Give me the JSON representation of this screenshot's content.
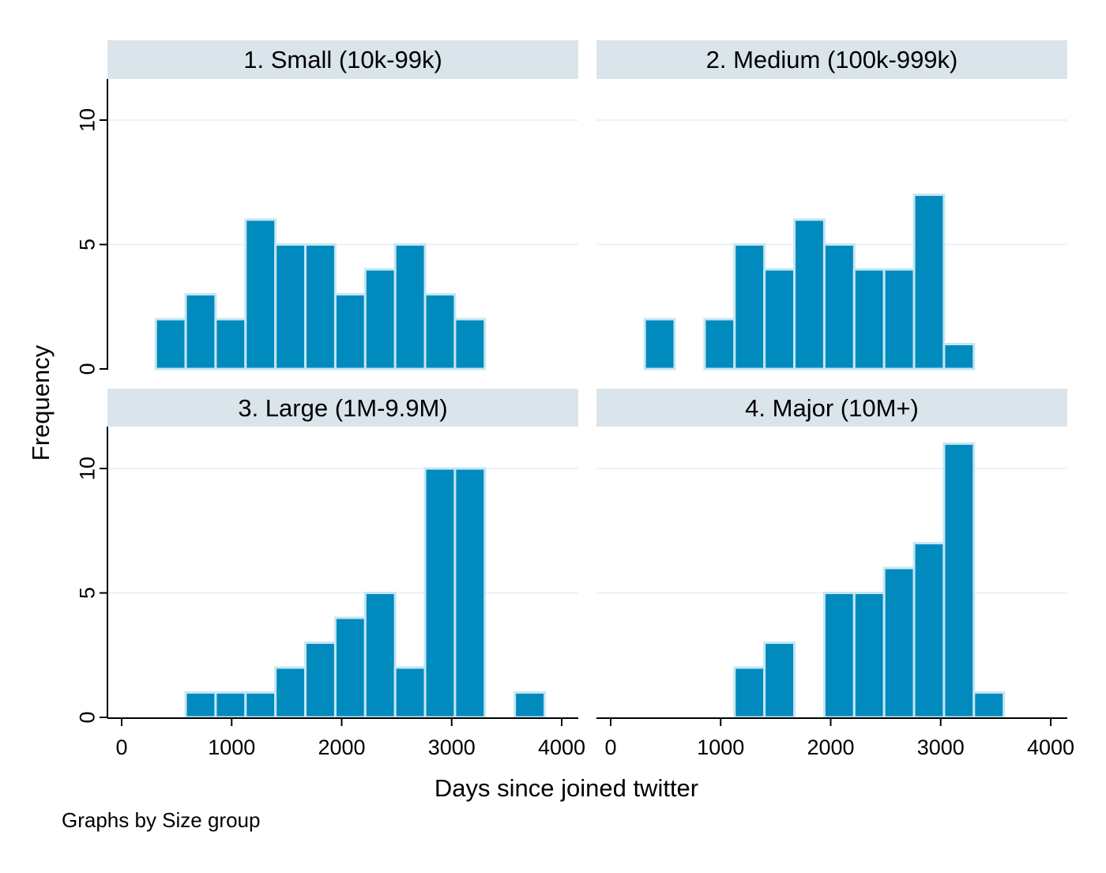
{
  "chart_data": {
    "type": "bar",
    "subtype": "histogram",
    "layout": "2x2 facets",
    "xlabel": "Days since joined twitter",
    "ylabel": "Frequency",
    "note": "Graphs by Size group",
    "xlim": [
      0,
      4000
    ],
    "ylim": [
      0,
      11
    ],
    "xticks": [
      0,
      1000,
      2000,
      3000,
      4000
    ],
    "yticks": [
      0,
      5,
      10
    ],
    "grid": true,
    "bin_width": 272,
    "colors": {
      "bar_fill": "#008abd",
      "bar_edge": "#c5e6f2",
      "strip": "#dae4eb",
      "grid": "#ebf2f5",
      "axis": "#000000"
    },
    "panels": [
      {
        "title": "1. Small (10k-99k)",
        "bins": [
          {
            "x0": 310,
            "x1": 582,
            "count": 2
          },
          {
            "x0": 582,
            "x1": 854,
            "count": 3
          },
          {
            "x0": 854,
            "x1": 1126,
            "count": 2
          },
          {
            "x0": 1126,
            "x1": 1398,
            "count": 6
          },
          {
            "x0": 1398,
            "x1": 1670,
            "count": 5
          },
          {
            "x0": 1670,
            "x1": 1942,
            "count": 5
          },
          {
            "x0": 1942,
            "x1": 2214,
            "count": 3
          },
          {
            "x0": 2214,
            "x1": 2486,
            "count": 4
          },
          {
            "x0": 2486,
            "x1": 2758,
            "count": 5
          },
          {
            "x0": 2758,
            "x1": 3030,
            "count": 3
          },
          {
            "x0": 3030,
            "x1": 3302,
            "count": 2
          }
        ]
      },
      {
        "title": "2. Medium (100k-999k)",
        "bins": [
          {
            "x0": 310,
            "x1": 582,
            "count": 2
          },
          {
            "x0": 582,
            "x1": 854,
            "count": 0
          },
          {
            "x0": 854,
            "x1": 1126,
            "count": 2
          },
          {
            "x0": 1126,
            "x1": 1398,
            "count": 5
          },
          {
            "x0": 1398,
            "x1": 1670,
            "count": 4
          },
          {
            "x0": 1670,
            "x1": 1942,
            "count": 6
          },
          {
            "x0": 1942,
            "x1": 2214,
            "count": 5
          },
          {
            "x0": 2214,
            "x1": 2486,
            "count": 4
          },
          {
            "x0": 2486,
            "x1": 2758,
            "count": 4
          },
          {
            "x0": 2758,
            "x1": 3030,
            "count": 7
          },
          {
            "x0": 3030,
            "x1": 3302,
            "count": 1
          }
        ]
      },
      {
        "title": "3. Large (1M-9.9M)",
        "bins": [
          {
            "x0": 582,
            "x1": 854,
            "count": 1
          },
          {
            "x0": 854,
            "x1": 1126,
            "count": 1
          },
          {
            "x0": 1126,
            "x1": 1398,
            "count": 1
          },
          {
            "x0": 1398,
            "x1": 1670,
            "count": 2
          },
          {
            "x0": 1670,
            "x1": 1942,
            "count": 3
          },
          {
            "x0": 1942,
            "x1": 2214,
            "count": 4
          },
          {
            "x0": 2214,
            "x1": 2486,
            "count": 5
          },
          {
            "x0": 2486,
            "x1": 2758,
            "count": 2
          },
          {
            "x0": 2758,
            "x1": 3030,
            "count": 10
          },
          {
            "x0": 3030,
            "x1": 3302,
            "count": 10
          },
          {
            "x0": 3302,
            "x1": 3574,
            "count": 0
          },
          {
            "x0": 3574,
            "x1": 3846,
            "count": 1
          }
        ]
      },
      {
        "title": "4. Major (10M+)",
        "bins": [
          {
            "x0": 1126,
            "x1": 1398,
            "count": 2
          },
          {
            "x0": 1398,
            "x1": 1670,
            "count": 3
          },
          {
            "x0": 1670,
            "x1": 1942,
            "count": 0
          },
          {
            "x0": 1942,
            "x1": 2214,
            "count": 5
          },
          {
            "x0": 2214,
            "x1": 2486,
            "count": 5
          },
          {
            "x0": 2486,
            "x1": 2758,
            "count": 6
          },
          {
            "x0": 2758,
            "x1": 3030,
            "count": 7
          },
          {
            "x0": 3030,
            "x1": 3302,
            "count": 11
          },
          {
            "x0": 3302,
            "x1": 3574,
            "count": 1
          }
        ]
      }
    ]
  }
}
